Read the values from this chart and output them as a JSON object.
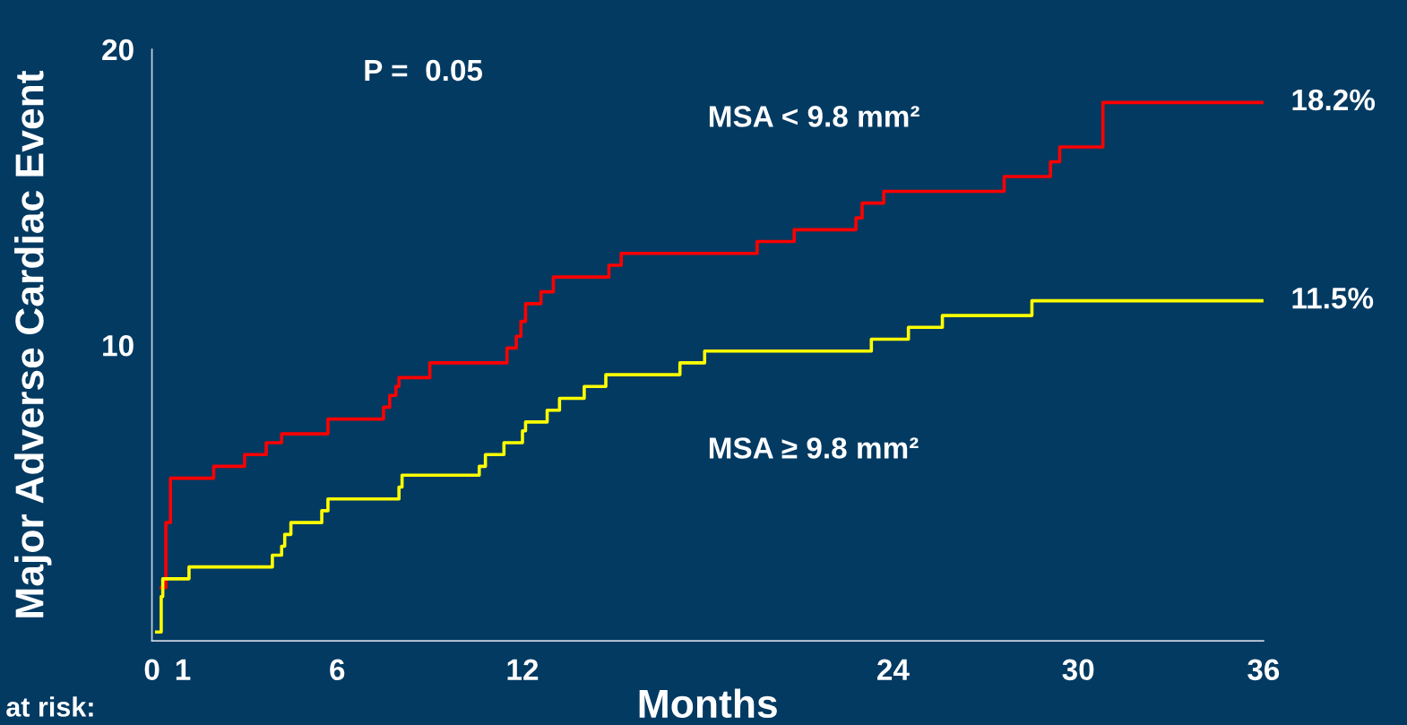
{
  "chart_data": {
    "type": "step",
    "xlabel": "Months",
    "ylabel": "Major Adverse Cardiac Event",
    "xlim": [
      0,
      36
    ],
    "ylim": [
      0,
      20
    ],
    "xticks": [
      0,
      1,
      6,
      12,
      24,
      30,
      36
    ],
    "yticks": [
      10,
      20
    ],
    "grid": false,
    "legend": false,
    "line_style": "solid",
    "marker": "none",
    "series": [
      {
        "name": "MSA < 9.8 mm²",
        "color": "#ff0000",
        "x": [
          0.3,
          0.45,
          0.6,
          2.0,
          3.0,
          3.7,
          4.2,
          5.7,
          7.5,
          7.7,
          7.9,
          8.0,
          9.0,
          11.5,
          11.8,
          11.95,
          12.1,
          12.6,
          13.0,
          14.8,
          15.2,
          19.6,
          20.8,
          22.8,
          23.0,
          23.7,
          27.6,
          29.1,
          29.4,
          30.8,
          36
        ],
        "values": [
          1.8,
          4.0,
          5.5,
          5.9,
          6.3,
          6.7,
          7.0,
          7.5,
          7.9,
          8.3,
          8.6,
          8.9,
          9.4,
          9.9,
          10.3,
          10.8,
          11.4,
          11.8,
          12.3,
          12.7,
          13.1,
          13.5,
          13.9,
          14.3,
          14.8,
          15.2,
          15.7,
          16.2,
          16.7,
          18.2,
          18.2
        ]
      },
      {
        "name": "MSA ≥ 9.8 mm²",
        "color": "#ffff00",
        "x": [
          0.15,
          0.3,
          0.35,
          1.2,
          3.9,
          4.2,
          4.3,
          4.5,
          5.5,
          5.7,
          8.0,
          8.1,
          10.6,
          10.8,
          11.4,
          12.0,
          12.1,
          12.8,
          13.2,
          14.0,
          14.7,
          17.1,
          17.9,
          23.3,
          24.5,
          25.6,
          28.5,
          36
        ],
        "values": [
          0.3,
          1.5,
          2.1,
          2.5,
          2.9,
          3.2,
          3.6,
          4.0,
          4.4,
          4.8,
          5.2,
          5.6,
          5.9,
          6.3,
          6.7,
          7.1,
          7.4,
          7.8,
          8.2,
          8.6,
          9.0,
          9.4,
          9.8,
          10.2,
          10.6,
          11.0,
          11.5,
          11.5
        ]
      }
    ],
    "annotations": [
      "P =  0.05",
      {
        "text": "18.2%",
        "x": 36,
        "y": 18.2
      },
      {
        "text": "11.5%",
        "x": 36,
        "y": 11.5
      },
      "at risk:"
    ]
  }
}
